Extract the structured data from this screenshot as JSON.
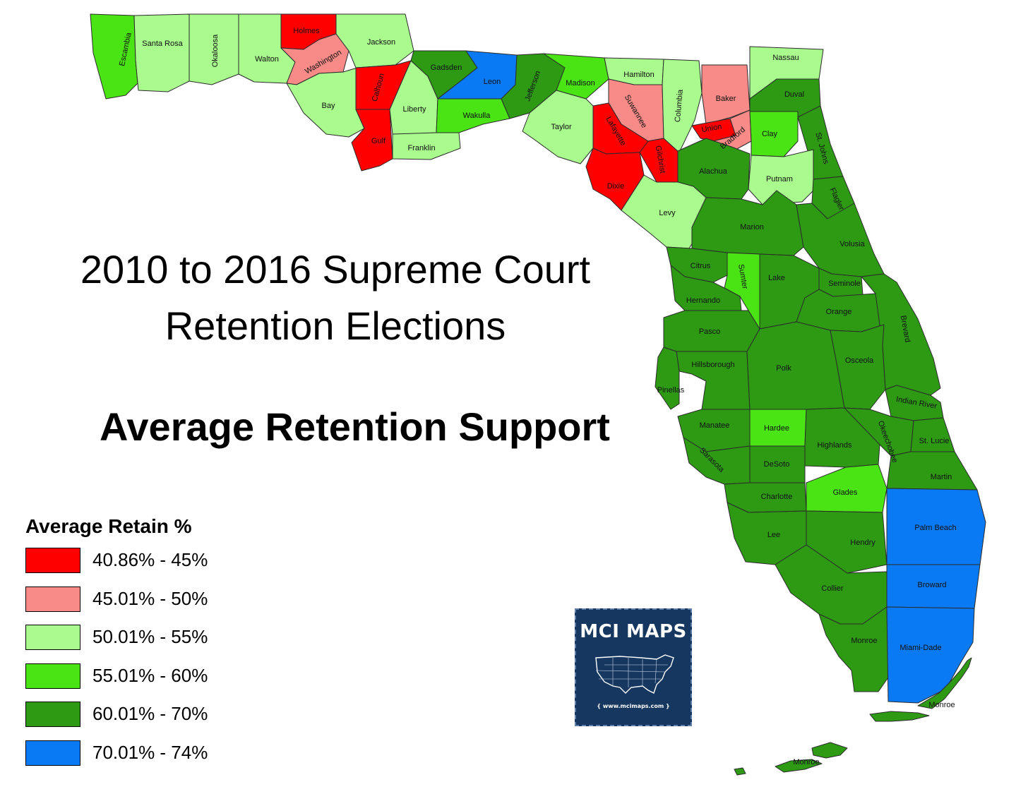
{
  "title": {
    "line1": "2010 to 2016 Supreme Court",
    "line2": "Retention Elections"
  },
  "subtitle": "Average Retention Support",
  "legend": {
    "title": "Average Retain %",
    "items": [
      {
        "label": "40.86% - 45%",
        "color": "#ff0000"
      },
      {
        "label": "45.01% - 50%",
        "color": "#f88a87"
      },
      {
        "label": "50.01% - 55%",
        "color": "#a9fb8e"
      },
      {
        "label": "55.01% - 60%",
        "color": "#4ae313"
      },
      {
        "label": "60.01% - 70%",
        "color": "#2e9a14"
      },
      {
        "label": "70.01% - 74%",
        "color": "#0a79f4"
      }
    ]
  },
  "logo": {
    "name": "MCI MAPS",
    "url": "www.mcimaps.com"
  },
  "counties": [
    {
      "name": "Escambia",
      "class": 3
    },
    {
      "name": "Santa Rosa",
      "class": 2
    },
    {
      "name": "Okaloosa",
      "class": 2
    },
    {
      "name": "Walton",
      "class": 2
    },
    {
      "name": "Holmes",
      "class": 0
    },
    {
      "name": "Washington",
      "class": 1
    },
    {
      "name": "Jackson",
      "class": 2
    },
    {
      "name": "Bay",
      "class": 2
    },
    {
      "name": "Calhoun",
      "class": 0
    },
    {
      "name": "Gulf",
      "class": 0
    },
    {
      "name": "Liberty",
      "class": 2
    },
    {
      "name": "Franklin",
      "class": 2
    },
    {
      "name": "Gadsden",
      "class": 4
    },
    {
      "name": "Leon",
      "class": 5
    },
    {
      "name": "Wakulla",
      "class": 3
    },
    {
      "name": "Jefferson",
      "class": 4
    },
    {
      "name": "Madison",
      "class": 3
    },
    {
      "name": "Taylor",
      "class": 2
    },
    {
      "name": "Hamilton",
      "class": 2
    },
    {
      "name": "Suwannee",
      "class": 1
    },
    {
      "name": "Lafayette",
      "class": 0
    },
    {
      "name": "Dixie",
      "class": 0
    },
    {
      "name": "Gilchrist",
      "class": 0
    },
    {
      "name": "Columbia",
      "class": 2
    },
    {
      "name": "Baker",
      "class": 1
    },
    {
      "name": "Union",
      "class": 0
    },
    {
      "name": "Bradford",
      "class": 1
    },
    {
      "name": "Nassau",
      "class": 2
    },
    {
      "name": "Duval",
      "class": 4
    },
    {
      "name": "Clay",
      "class": 3
    },
    {
      "name": "St. Johns",
      "class": 4
    },
    {
      "name": "Putnam",
      "class": 2
    },
    {
      "name": "Alachua",
      "class": 4
    },
    {
      "name": "Levy",
      "class": 2
    },
    {
      "name": "Flagler",
      "class": 4
    },
    {
      "name": "Marion",
      "class": 4
    },
    {
      "name": "Volusia",
      "class": 4
    },
    {
      "name": "Citrus",
      "class": 4
    },
    {
      "name": "Sumter",
      "class": 3
    },
    {
      "name": "Lake",
      "class": 4
    },
    {
      "name": "Seminole",
      "class": 4
    },
    {
      "name": "Hernando",
      "class": 4
    },
    {
      "name": "Orange",
      "class": 4
    },
    {
      "name": "Brevard",
      "class": 4
    },
    {
      "name": "Pasco",
      "class": 4
    },
    {
      "name": "Hillsborough",
      "class": 4
    },
    {
      "name": "Pinellas",
      "class": 4
    },
    {
      "name": "Polk",
      "class": 4
    },
    {
      "name": "Osceola",
      "class": 4
    },
    {
      "name": "Indian River",
      "class": 4
    },
    {
      "name": "Manatee",
      "class": 4
    },
    {
      "name": "Hardee",
      "class": 3
    },
    {
      "name": "Highlands",
      "class": 4
    },
    {
      "name": "Okeechobee",
      "class": 4
    },
    {
      "name": "St. Lucie",
      "class": 4
    },
    {
      "name": "Sarasota",
      "class": 4
    },
    {
      "name": "DeSoto",
      "class": 4
    },
    {
      "name": "Martin",
      "class": 4
    },
    {
      "name": "Charlotte",
      "class": 4
    },
    {
      "name": "Glades",
      "class": 3
    },
    {
      "name": "Palm Beach",
      "class": 5
    },
    {
      "name": "Lee",
      "class": 4
    },
    {
      "name": "Hendry",
      "class": 4
    },
    {
      "name": "Broward",
      "class": 5
    },
    {
      "name": "Collier",
      "class": 4
    },
    {
      "name": "Monroe",
      "class": 4
    },
    {
      "name": "Miami-Dade",
      "class": 5
    }
  ],
  "keys_labels": [
    "Monroe",
    "Monroe"
  ]
}
